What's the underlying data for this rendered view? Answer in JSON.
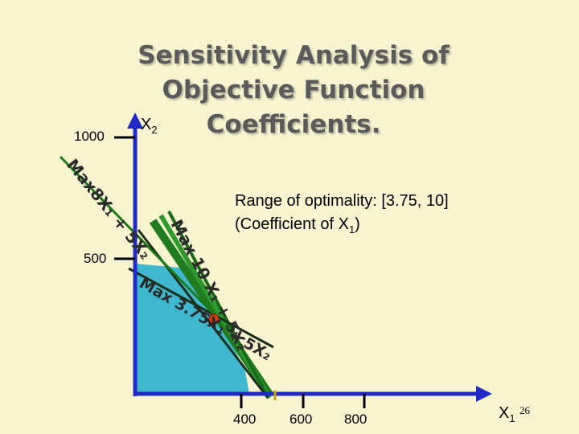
{
  "title": {
    "line1": "Sensitivity Analysis of",
    "line2": "Objective Function",
    "line3": "Coefficients."
  },
  "axes": {
    "y_label_base": "X",
    "y_label_sub": "2",
    "x_label_base": "X",
    "x_label_sub": "1",
    "y_ticks": [
      "1000",
      "500"
    ],
    "x_ticks": [
      "400",
      "600",
      "800"
    ]
  },
  "range_note": {
    "line1": "Range of optimality: [3.75, 10]",
    "line2_prefix": "(Coefficient of X",
    "line2_sub": "1",
    "line2_suffix": ")"
  },
  "objective_labels": {
    "original": "Max8X₁ + 5X₂",
    "upper": "Max 10 X₁ + 5X₂",
    "lower": "Max 3.75X₁ + 5X₂"
  },
  "page_number": "26",
  "colors": {
    "background": "#f7f4cf",
    "feasible_region": "#3fb8cf",
    "axis": "#1f2ac9",
    "line_green": "#1a7a1a",
    "line_dark": "#1c3a1c",
    "optimal_point": "#d93a1a",
    "tick_mark": "#c8a800"
  }
}
